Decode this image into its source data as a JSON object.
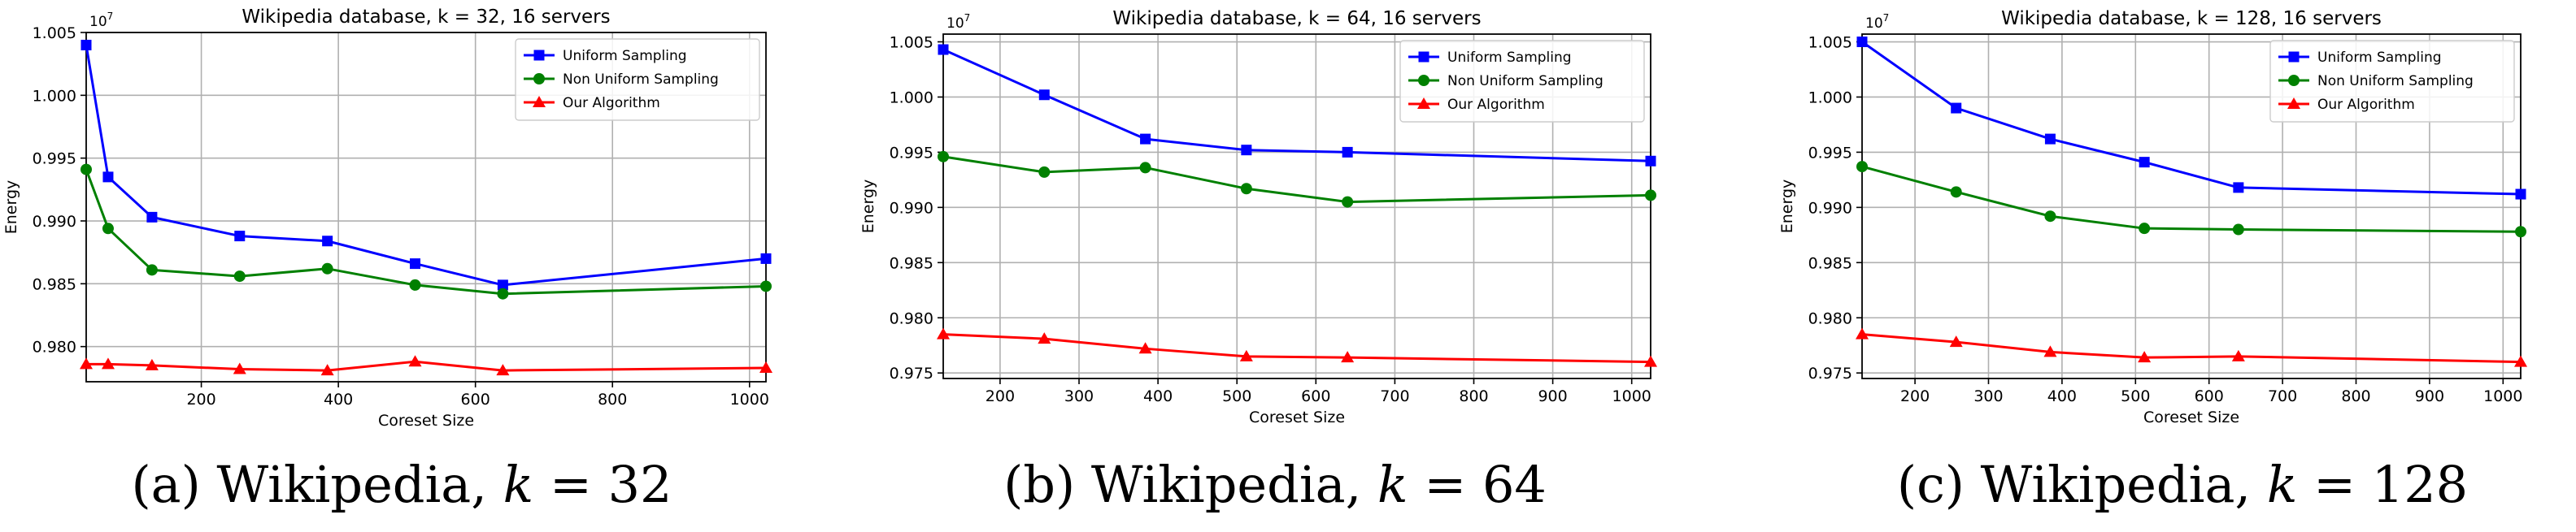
{
  "colors": {
    "uniform": "#0000ff",
    "nonuniform": "#008000",
    "ours": "#ff0000",
    "grid": "#b0b0b0",
    "axis": "#000000"
  },
  "chart_data": [
    {
      "type": "line",
      "title": "Wikipedia database, k = 32, 16 servers",
      "xlabel": "Coreset Size",
      "ylabel": "Energy",
      "offset_text": "1e7",
      "xlim": [
        32,
        1024
      ],
      "ylim": [
        0.9772,
        1.005
      ],
      "xticks": [
        200,
        400,
        600,
        800,
        1000
      ],
      "yticks": [
        0.98,
        0.985,
        0.99,
        0.995,
        1.0,
        1.005
      ],
      "ytick_labels": [
        "0.980",
        "0.985",
        "0.990",
        "0.995",
        "1.000",
        "1.005"
      ],
      "grid": true,
      "legend_position": "top-right",
      "caption_prefix": "(a)  Wikipedia, ",
      "caption_k": "k",
      "caption_suffix": " = 32",
      "series": [
        {
          "name": "Uniform Sampling",
          "color": "uniform",
          "marker": "square",
          "x": [
            32,
            64,
            128,
            256,
            384,
            512,
            640,
            1024
          ],
          "y": [
            1.004,
            0.9935,
            0.9903,
            0.9888,
            0.9884,
            0.9866,
            0.9849,
            0.987
          ]
        },
        {
          "name": "Non Uniform Sampling",
          "color": "nonuniform",
          "marker": "circle",
          "x": [
            32,
            64,
            128,
            256,
            384,
            512,
            640,
            1024
          ],
          "y": [
            0.9941,
            0.9894,
            0.9861,
            0.9856,
            0.9862,
            0.9849,
            0.9842,
            0.9848
          ]
        },
        {
          "name": "Our Algorithm",
          "color": "ours",
          "marker": "triangle",
          "x": [
            32,
            64,
            128,
            256,
            384,
            512,
            640,
            1024
          ],
          "y": [
            0.9786,
            0.9786,
            0.9785,
            0.9782,
            0.9781,
            0.9788,
            0.9781,
            0.9783
          ]
        }
      ]
    },
    {
      "type": "line",
      "title": "Wikipedia database, k = 64, 16 servers",
      "xlabel": "Coreset Size",
      "ylabel": "Energy",
      "offset_text": "1e7",
      "xlim": [
        128,
        1024
      ],
      "ylim": [
        0.9745,
        1.0057
      ],
      "xticks": [
        200,
        300,
        400,
        500,
        600,
        700,
        800,
        900,
        1000
      ],
      "yticks": [
        0.975,
        0.98,
        0.985,
        0.99,
        0.995,
        1.0,
        1.005
      ],
      "ytick_labels": [
        "0.975",
        "0.980",
        "0.985",
        "0.990",
        "0.995",
        "1.000",
        "1.005"
      ],
      "grid": true,
      "legend_position": "top-right",
      "caption_prefix": "(b)  Wikipedia, ",
      "caption_k": "k",
      "caption_suffix": " = 64",
      "series": [
        {
          "name": "Uniform Sampling",
          "color": "uniform",
          "marker": "square",
          "x": [
            128,
            256,
            384,
            512,
            640,
            1024
          ],
          "y": [
            1.0043,
            1.0002,
            0.9962,
            0.9952,
            0.995,
            0.9942
          ]
        },
        {
          "name": "Non Uniform Sampling",
          "color": "nonuniform",
          "marker": "circle",
          "x": [
            128,
            256,
            384,
            512,
            640,
            1024
          ],
          "y": [
            0.9946,
            0.9932,
            0.9936,
            0.9917,
            0.9905,
            0.9911
          ]
        },
        {
          "name": "Our Algorithm",
          "color": "ours",
          "marker": "triangle",
          "x": [
            128,
            256,
            384,
            512,
            640,
            1024
          ],
          "y": [
            0.9785,
            0.9781,
            0.9772,
            0.9765,
            0.9764,
            0.976
          ]
        }
      ]
    },
    {
      "type": "line",
      "title": "Wikipedia database, k = 128, 16 servers",
      "xlabel": "Coreset Size",
      "ylabel": "Energy",
      "offset_text": "1e7",
      "xlim": [
        128,
        1024
      ],
      "ylim": [
        0.9745,
        1.0057
      ],
      "xticks": [
        200,
        300,
        400,
        500,
        600,
        700,
        800,
        900,
        1000
      ],
      "yticks": [
        0.975,
        0.98,
        0.985,
        0.99,
        0.995,
        1.0,
        1.005
      ],
      "ytick_labels": [
        "0.975",
        "0.980",
        "0.985",
        "0.990",
        "0.995",
        "1.000",
        "1.005"
      ],
      "grid": true,
      "legend_position": "top-right",
      "caption_prefix": "(c)  Wikipedia, ",
      "caption_k": "k",
      "caption_suffix": " = 128",
      "series": [
        {
          "name": "Uniform Sampling",
          "color": "uniform",
          "marker": "square",
          "x": [
            128,
            256,
            384,
            512,
            640,
            1024
          ],
          "y": [
            1.005,
            0.999,
            0.9962,
            0.9941,
            0.9918,
            0.9912
          ]
        },
        {
          "name": "Non Uniform Sampling",
          "color": "nonuniform",
          "marker": "circle",
          "x": [
            128,
            256,
            384,
            512,
            640,
            1024
          ],
          "y": [
            0.9937,
            0.9914,
            0.9892,
            0.9881,
            0.988,
            0.9878
          ]
        },
        {
          "name": "Our Algorithm",
          "color": "ours",
          "marker": "triangle",
          "x": [
            128,
            256,
            384,
            512,
            640,
            1024
          ],
          "y": [
            0.9785,
            0.9778,
            0.9769,
            0.9764,
            0.9765,
            0.976
          ]
        }
      ]
    }
  ]
}
